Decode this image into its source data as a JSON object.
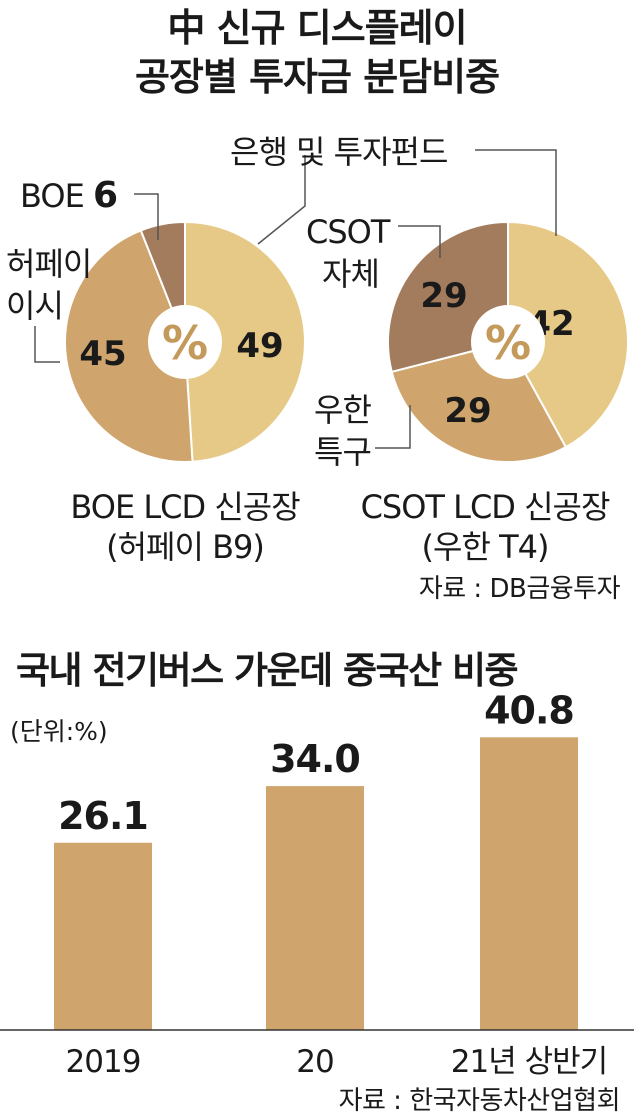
{
  "pie_section": {
    "title_line1": "中 신규 디스플레이",
    "title_line2": "공장별 투자금 분담비중",
    "center_symbol": "%",
    "source": "자료 : DB금융투자"
  },
  "bar_section": {
    "title": "국내 전기버스 가운데 중국산 비중",
    "unit": "(단위:%)",
    "source": "자료 : 한국자동차산업협회"
  },
  "colors": {
    "light": "#e6c986",
    "mid": "#cfa56d",
    "dark": "#a37c5d",
    "bar": "#cfa56d",
    "center": "#ffffff",
    "center_symbol": "#c49a5a"
  },
  "chart_data": [
    {
      "type": "pie",
      "caption_line1": "BOE LCD 신공장",
      "caption_line2": "(허페이 B9)",
      "slices": [
        {
          "label": "은행 및 투자펀드",
          "value": 49,
          "value_label": "49",
          "color": "light"
        },
        {
          "label": "허페이 이시",
          "label_line1": "허페이",
          "label_line2": "이시",
          "value": 45,
          "value_label": "45",
          "color": "mid"
        },
        {
          "label": "BOE",
          "value": 6,
          "value_label": "6",
          "color": "dark"
        }
      ]
    },
    {
      "type": "pie",
      "caption_line1": "CSOT LCD 신공장",
      "caption_line2": "(우한 T4)",
      "slices": [
        {
          "label": "은행 및 투자펀드",
          "value": 42,
          "value_label": "42",
          "color": "light"
        },
        {
          "label": "우한 특구",
          "label_line1": "우한",
          "label_line2": "특구",
          "value": 29,
          "value_label": "29",
          "color": "mid"
        },
        {
          "label": "CSOT 자체",
          "label_line1": "CSOT",
          "label_line2": "자체",
          "value": 29,
          "value_label": "29",
          "color": "dark"
        }
      ]
    },
    {
      "type": "bar",
      "categories": [
        "2019",
        "20",
        "21년 상반기"
      ],
      "values": [
        26.1,
        34.0,
        40.8
      ],
      "value_labels": [
        "26.1",
        "34.0",
        "40.8"
      ],
      "ylim": [
        0,
        46
      ]
    }
  ]
}
